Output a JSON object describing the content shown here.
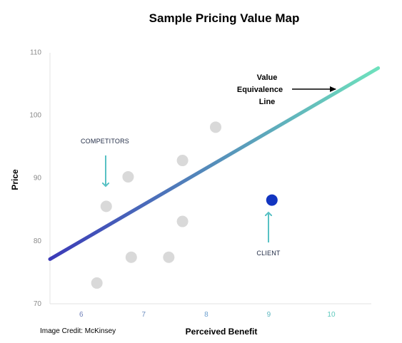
{
  "chart_data": {
    "type": "scatter",
    "title": "Sample Pricing Value Map",
    "xlabel": "Perceived Benefit",
    "ylabel": "Price",
    "xlim": [
      5.5,
      10.8
    ],
    "ylim": [
      70,
      113
    ],
    "xticks": [
      6,
      7,
      8,
      9,
      10
    ],
    "yticks": [
      70,
      80,
      90,
      100,
      110
    ],
    "grid": false,
    "series": [
      {
        "name": "COMPETITORS",
        "color": "#d9d9d9",
        "points": [
          {
            "x": 6.25,
            "y": 73.3
          },
          {
            "x": 6.4,
            "y": 85.5
          },
          {
            "x": 6.75,
            "y": 90.2
          },
          {
            "x": 6.8,
            "y": 77.4
          },
          {
            "x": 7.4,
            "y": 77.4
          },
          {
            "x": 7.62,
            "y": 92.8
          },
          {
            "x": 7.62,
            "y": 83.1
          },
          {
            "x": 8.15,
            "y": 98.1
          }
        ]
      },
      {
        "name": "CLIENT",
        "color": "#1235c0",
        "points": [
          {
            "x": 9.05,
            "y": 86.5
          }
        ]
      }
    ],
    "line": {
      "label_lines": [
        "Value",
        "Equivalence",
        "Line"
      ],
      "x": [
        5.5,
        10.75
      ],
      "y": [
        77.1,
        107.5
      ],
      "color_start": "#3b3ab8",
      "color_end": "#6fe3bd"
    },
    "annotations": {
      "competitors": "COMPETITORS",
      "client": "CLIENT",
      "arrow_color": "#58c1c4"
    },
    "xtick_colors": [
      "#6f7fb8",
      "#6f8fc0",
      "#6b9fcf",
      "#5fb8c0",
      "#5cc9bd"
    ],
    "ytick_color": "#8a8a8a"
  },
  "credit": "Image Credit: McKinsey"
}
